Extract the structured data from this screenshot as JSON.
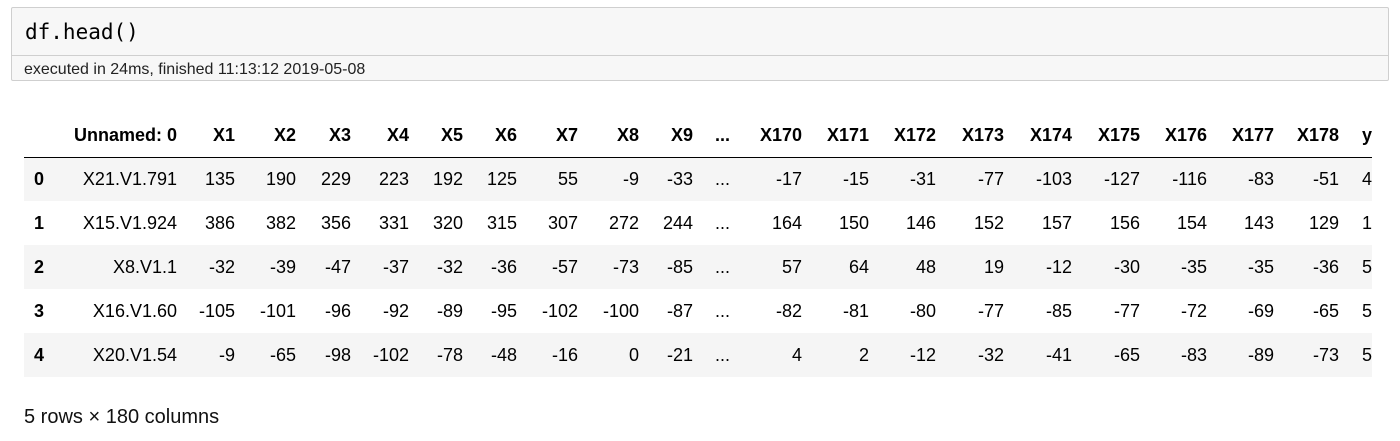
{
  "cell": {
    "code": "df.head()",
    "exec_info": "executed in 24ms, finished 11:13:12 2019-05-08"
  },
  "table": {
    "columns": [
      "",
      "Unnamed: 0",
      "X1",
      "X2",
      "X3",
      "X4",
      "X5",
      "X6",
      "X7",
      "X8",
      "X9",
      "...",
      "X170",
      "X171",
      "X172",
      "X173",
      "X174",
      "X175",
      "X176",
      "X177",
      "X178",
      "y"
    ],
    "rows": [
      [
        "0",
        "X21.V1.791",
        "135",
        "190",
        "229",
        "223",
        "192",
        "125",
        "55",
        "-9",
        "-33",
        "...",
        "-17",
        "-15",
        "-31",
        "-77",
        "-103",
        "-127",
        "-116",
        "-83",
        "-51",
        "4"
      ],
      [
        "1",
        "X15.V1.924",
        "386",
        "382",
        "356",
        "331",
        "320",
        "315",
        "307",
        "272",
        "244",
        "...",
        "164",
        "150",
        "146",
        "152",
        "157",
        "156",
        "154",
        "143",
        "129",
        "1"
      ],
      [
        "2",
        "X8.V1.1",
        "-32",
        "-39",
        "-47",
        "-37",
        "-32",
        "-36",
        "-57",
        "-73",
        "-85",
        "...",
        "57",
        "64",
        "48",
        "19",
        "-12",
        "-30",
        "-35",
        "-35",
        "-36",
        "5"
      ],
      [
        "3",
        "X16.V1.60",
        "-105",
        "-101",
        "-96",
        "-92",
        "-89",
        "-95",
        "-102",
        "-100",
        "-87",
        "...",
        "-82",
        "-81",
        "-80",
        "-77",
        "-85",
        "-77",
        "-72",
        "-69",
        "-65",
        "5"
      ],
      [
        "4",
        "X20.V1.54",
        "-9",
        "-65",
        "-98",
        "-102",
        "-78",
        "-48",
        "-16",
        "0",
        "-21",
        "...",
        "4",
        "2",
        "-12",
        "-32",
        "-41",
        "-65",
        "-83",
        "-89",
        "-73",
        "5"
      ]
    ]
  },
  "footer": "5 rows × 180 columns"
}
